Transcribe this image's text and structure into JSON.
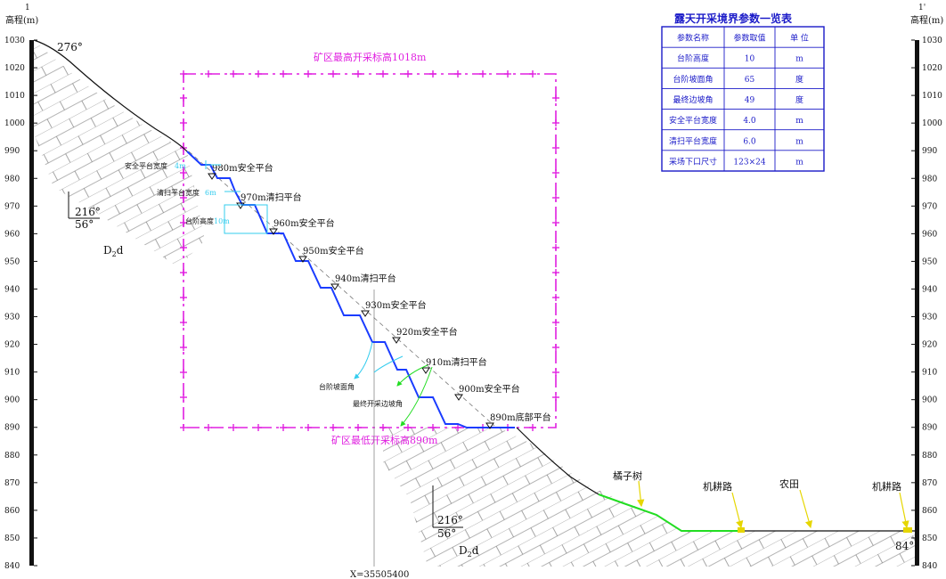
{
  "axes": {
    "left_marker": "1",
    "right_marker": "1'",
    "axis_title": "高程(m)",
    "elevation_min": 840,
    "elevation_max": 1030,
    "elevation_step": 10
  },
  "boundary": {
    "top_label": "矿区最高开采标高1018m",
    "bottom_label": "矿区最低开采标高890m",
    "top_elevation": 1018,
    "bottom_elevation": 890,
    "color": "#e020e0"
  },
  "table": {
    "title": "露天开采境界参数一览表",
    "headers": [
      "参数名称",
      "参数取值",
      "单 位"
    ],
    "rows": [
      [
        "台阶高度",
        "10",
        "m"
      ],
      [
        "台阶坡面角",
        "65",
        "度"
      ],
      [
        "最终边坡角",
        "49",
        "度"
      ],
      [
        "安全平台宽度",
        "4.0",
        "m"
      ],
      [
        "清扫平台宽度",
        "6.0",
        "m"
      ],
      [
        "采场下口尺寸",
        "123×24",
        "m"
      ]
    ],
    "color": "#1a1ac8"
  },
  "benches": [
    {
      "elevation": 980,
      "label": "980m安全平台"
    },
    {
      "elevation": 970,
      "label": "970m清扫平台"
    },
    {
      "elevation": 960,
      "label": "960m安全平台"
    },
    {
      "elevation": 950,
      "label": "950m安全平台"
    },
    {
      "elevation": 940,
      "label": "940m清扫平台"
    },
    {
      "elevation": 930,
      "label": "930m安全平台"
    },
    {
      "elevation": 920,
      "label": "920m安全平台"
    },
    {
      "elevation": 910,
      "label": "910m清扫平台"
    },
    {
      "elevation": 900,
      "label": "900m安全平台"
    },
    {
      "elevation": 890,
      "label": "890m底部平台"
    }
  ],
  "dims": {
    "safety_width_label": "安全平台宽度",
    "safety_width_value": "4m",
    "cleaning_width_label": "清扫平台宽度",
    "cleaning_width_value": "6m",
    "bench_height_label": "台阶高度",
    "bench_height_value": "10m",
    "face_angle_label": "台阶坡面角",
    "final_angle_label": "最终开采边坡角"
  },
  "geology": {
    "upper_dip_dir": "216°",
    "upper_dip_angle": "56°",
    "upper_unit_main": "D",
    "upper_unit_sub": "2",
    "upper_unit_suffix": "d",
    "lower_dip_dir": "216°",
    "lower_dip_angle": "56°",
    "lower_unit_main": "D",
    "lower_unit_sub": "2",
    "lower_unit_suffix": "d",
    "top_left_angle": "276°",
    "bottom_right_angle": "84°"
  },
  "features": {
    "orange_grove": "橘子树",
    "farm_road_1": "机耕路",
    "farmland": "农田",
    "farm_road_2": "机耕路"
  },
  "coordinate_label": "X=35505400",
  "colors": {
    "bench": "#1a3cff",
    "terrain": "#111111",
    "green": "#22dd22",
    "cyan": "#33ccee",
    "yellow": "#e6d600",
    "hatch": "#555555"
  }
}
